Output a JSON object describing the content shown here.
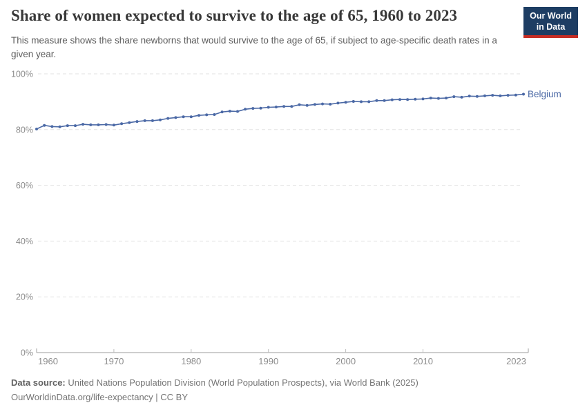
{
  "header": {
    "title": "Share of women expected to survive to the age of 65, 1960 to 2023",
    "subtitle": "This measure shows the share newborns that would survive to the age of 65, if subject to age-specific death rates in a given year.",
    "logo": {
      "line1": "Our World",
      "line2": "in Data"
    }
  },
  "chart_data": {
    "type": "line",
    "title": "Share of women expected to survive to the age of 65, 1960 to 2023",
    "xlabel": "",
    "ylabel": "",
    "xlim": [
      1960,
      2023
    ],
    "ylim": [
      0,
      100
    ],
    "xticks": [
      1960,
      1970,
      1980,
      1990,
      2000,
      2010,
      2023
    ],
    "yticks": [
      0,
      20,
      40,
      60,
      80,
      100
    ],
    "ytick_suffix": "%",
    "grid": "horizontal-dashed",
    "legend_position": "end-of-line-label",
    "series": [
      {
        "name": "Belgium",
        "color": "#4a68a5",
        "x": [
          1960,
          1961,
          1962,
          1963,
          1964,
          1965,
          1966,
          1967,
          1968,
          1969,
          1970,
          1971,
          1972,
          1973,
          1974,
          1975,
          1976,
          1977,
          1978,
          1979,
          1980,
          1981,
          1982,
          1983,
          1984,
          1985,
          1986,
          1987,
          1988,
          1989,
          1990,
          1991,
          1992,
          1993,
          1994,
          1995,
          1996,
          1997,
          1998,
          1999,
          2000,
          2001,
          2002,
          2003,
          2004,
          2005,
          2006,
          2007,
          2008,
          2009,
          2010,
          2011,
          2012,
          2013,
          2014,
          2015,
          2016,
          2017,
          2018,
          2019,
          2020,
          2021,
          2022,
          2023
        ],
        "values": [
          80.2,
          81.5,
          81.1,
          81.0,
          81.4,
          81.4,
          81.9,
          81.7,
          81.7,
          81.8,
          81.6,
          82.1,
          82.5,
          82.9,
          83.2,
          83.2,
          83.5,
          84.0,
          84.3,
          84.6,
          84.6,
          85.1,
          85.3,
          85.4,
          86.3,
          86.6,
          86.5,
          87.3,
          87.6,
          87.7,
          88.0,
          88.1,
          88.3,
          88.3,
          88.9,
          88.7,
          89.0,
          89.2,
          89.1,
          89.5,
          89.8,
          90.1,
          90.0,
          90.0,
          90.4,
          90.4,
          90.7,
          90.8,
          90.8,
          90.9,
          91.0,
          91.3,
          91.2,
          91.3,
          91.8,
          91.6,
          92.0,
          91.9,
          92.1,
          92.3,
          92.1,
          92.3,
          92.4,
          92.7
        ]
      }
    ]
  },
  "footer": {
    "source_label": "Data source:",
    "source_text": "United Nations Population Division (World Population Prospects), via World Bank (2025)",
    "url": "OurWorldinData.org/life-expectancy",
    "license": " | CC BY"
  },
  "colors": {
    "line": "#4a68a5",
    "grid": "#e2e2e2",
    "axis": "#9e9e9e",
    "tick": "#bdbdbd",
    "tick_label": "#8c8c8c",
    "logo_bg": "#1d3d63",
    "logo_accent": "#c62d24"
  }
}
